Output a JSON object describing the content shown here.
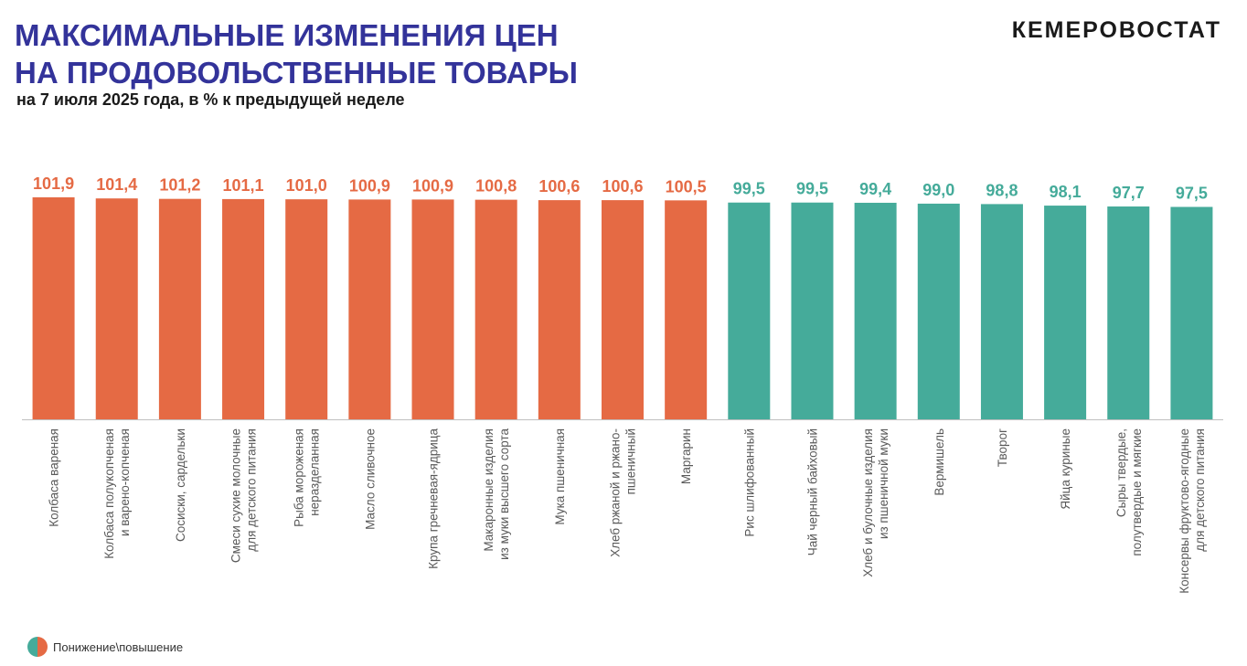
{
  "header": {
    "title_line1": "МАКСИМАЛЬНЫЕ ИЗМЕНЕНИЯ ЦЕН",
    "title_line2": "НА ПРОДОВОЛЬСТВЕННЫЕ ТОВАРЫ",
    "subtitle": "на 7 июля 2025 года, в % к предыдущей неделе",
    "brand": "КЕМЕРОВОСТАТ"
  },
  "legend": {
    "label": "Понижение\\повышение"
  },
  "colors": {
    "increase": "#e56a44",
    "decrease": "#45ab9a",
    "title": "#33339a"
  },
  "chart_data": {
    "type": "bar",
    "title": "",
    "xlabel": "",
    "ylabel": "",
    "ylim": [
      0,
      101.9
    ],
    "grid": false,
    "categories": [
      [
        "Колбаса вареная"
      ],
      [
        "Колбаса полукопченая",
        "и варено-копченая"
      ],
      [
        "Сосиски, сардельки"
      ],
      [
        "Смеси сухие молочные",
        "для детского питания"
      ],
      [
        "Рыба мороженая",
        "неразделанная"
      ],
      [
        "Масло сливочное"
      ],
      [
        "Крупа гречневая-ядрица"
      ],
      [
        "Макаронные изделия",
        "из муки высшего сорта"
      ],
      [
        "Мука пшеничная"
      ],
      [
        "Хлеб ржаной и ржано-",
        "пшеничный"
      ],
      [
        "Маргарин"
      ],
      [
        "Рис шлифованный"
      ],
      [
        "Чай черный байховый"
      ],
      [
        "Хлеб и булочные изделия",
        "из пшеничной муки"
      ],
      [
        "Вермишель"
      ],
      [
        "Творог"
      ],
      [
        "Яйца куриные"
      ],
      [
        "Сыры твердые,",
        "полутвердые и мягкие"
      ],
      [
        "Консервы фруктово-ягодные",
        "для детского питания"
      ]
    ],
    "values": [
      101.9,
      101.4,
      101.2,
      101.1,
      101.0,
      100.9,
      100.9,
      100.8,
      100.6,
      100.6,
      100.5,
      99.5,
      99.5,
      99.4,
      99.0,
      98.8,
      98.1,
      97.7,
      97.5
    ],
    "value_labels": [
      "101,9",
      "101,4",
      "101,2",
      "101,1",
      "101,0",
      "100,9",
      "100,9",
      "100,8",
      "100,6",
      "100,6",
      "100,5",
      "99,5",
      "99,5",
      "99,4",
      "99,0",
      "98,8",
      "98,1",
      "97,7",
      "97,5"
    ],
    "series_colors": [
      "increase",
      "increase",
      "increase",
      "increase",
      "increase",
      "increase",
      "increase",
      "increase",
      "increase",
      "increase",
      "increase",
      "decrease",
      "decrease",
      "decrease",
      "decrease",
      "decrease",
      "decrease",
      "decrease",
      "decrease"
    ]
  }
}
